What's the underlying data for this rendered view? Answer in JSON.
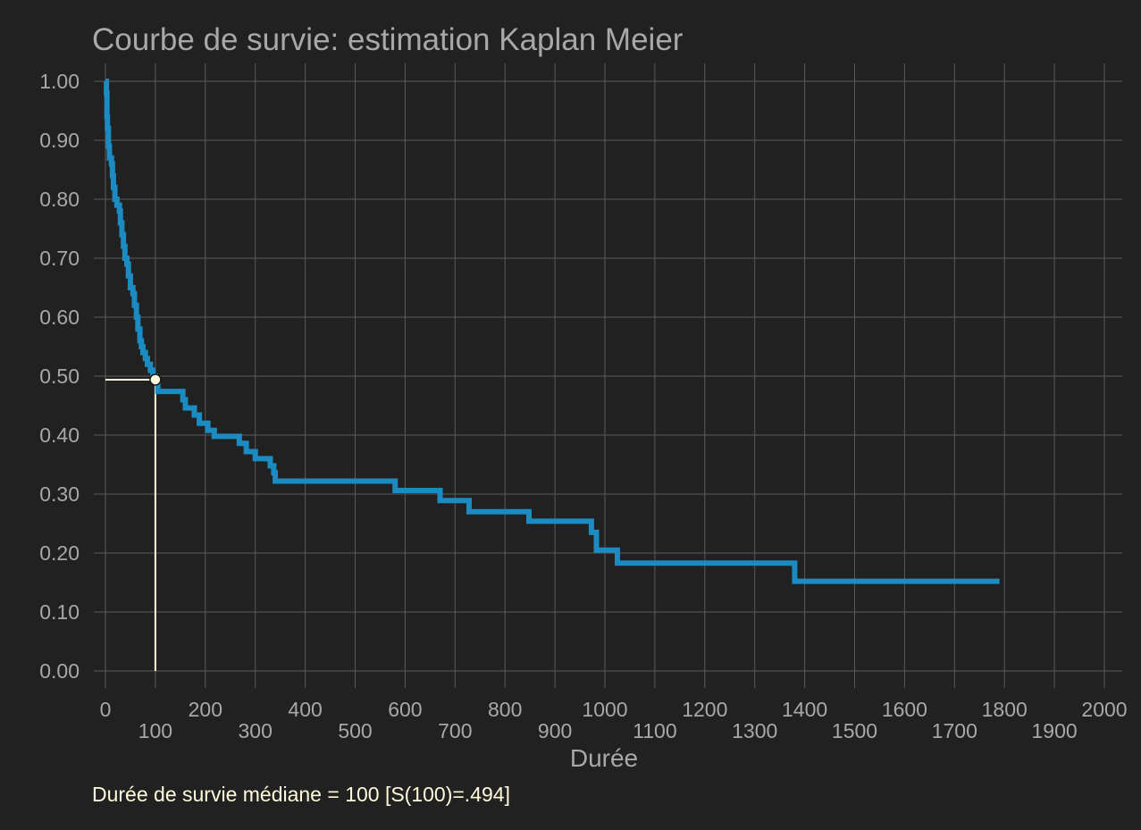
{
  "chart_data": {
    "type": "line",
    "title": "Courbe de survie: estimation Kaplan Meier",
    "xlabel": "Durée",
    "ylabel": "",
    "xlim": [
      0,
      2000
    ],
    "ylim": [
      0,
      1
    ],
    "grid": true,
    "x_ticks_row1": [
      "0",
      "200",
      "400",
      "600",
      "800",
      "1000",
      "1200",
      "1400",
      "1600",
      "1800",
      "2000"
    ],
    "x_ticks_row2": [
      "100",
      "300",
      "500",
      "700",
      "900",
      "1100",
      "1300",
      "1500",
      "1700",
      "1900"
    ],
    "y_ticks": [
      "0.00",
      "0.10",
      "0.20",
      "0.30",
      "0.40",
      "0.50",
      "0.60",
      "0.70",
      "0.80",
      "0.90",
      "1.00"
    ],
    "series": [
      {
        "steps": [
          [
            0,
            1.0
          ],
          [
            2,
            0.98
          ],
          [
            3,
            0.94
          ],
          [
            4,
            0.92
          ],
          [
            6,
            0.89
          ],
          [
            8,
            0.87
          ],
          [
            12,
            0.86
          ],
          [
            14,
            0.84
          ],
          [
            16,
            0.82
          ],
          [
            19,
            0.8
          ],
          [
            23,
            0.79
          ],
          [
            28,
            0.78
          ],
          [
            30,
            0.76
          ],
          [
            33,
            0.74
          ],
          [
            36,
            0.72
          ],
          [
            39,
            0.7
          ],
          [
            43,
            0.69
          ],
          [
            46,
            0.67
          ],
          [
            50,
            0.65
          ],
          [
            55,
            0.64
          ],
          [
            58,
            0.62
          ],
          [
            62,
            0.6
          ],
          [
            65,
            0.58
          ],
          [
            69,
            0.56
          ],
          [
            72,
            0.55
          ],
          [
            75,
            0.54
          ],
          [
            80,
            0.53
          ],
          [
            84,
            0.52
          ],
          [
            90,
            0.51
          ],
          [
            95,
            0.5
          ],
          [
            100,
            0.494
          ],
          [
            105,
            0.474
          ],
          [
            155,
            0.46
          ],
          [
            160,
            0.446
          ],
          [
            178,
            0.434
          ],
          [
            188,
            0.42
          ],
          [
            205,
            0.408
          ],
          [
            218,
            0.398
          ],
          [
            268,
            0.386
          ],
          [
            282,
            0.372
          ],
          [
            300,
            0.36
          ],
          [
            330,
            0.348
          ],
          [
            337,
            0.336
          ],
          [
            340,
            0.322
          ],
          [
            580,
            0.306
          ],
          [
            670,
            0.289
          ],
          [
            728,
            0.27
          ],
          [
            848,
            0.254
          ],
          [
            973,
            0.235
          ],
          [
            983,
            0.205
          ],
          [
            1025,
            0.183
          ],
          [
            1380,
            0.152
          ],
          [
            1790,
            0.152
          ]
        ],
        "color": "#1b8bc2"
      }
    ],
    "median_marker": {
      "x": 100,
      "y": 0.494,
      "color": "#fffbdc"
    },
    "annotation": "Durée de survie médiane = 100 [S(100)=.494]"
  }
}
